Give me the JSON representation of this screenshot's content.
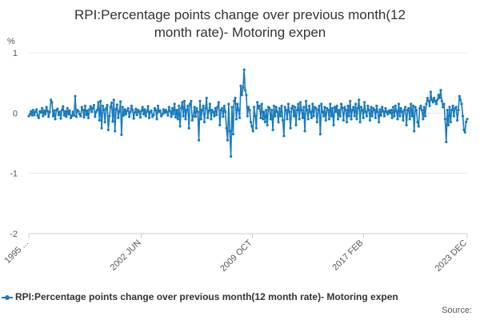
{
  "title_line1": "RPI:Percentage points change over previous month(12",
  "title_line2": "month rate)- Motoring expen",
  "legend_label": "RPI:Percentage points change over previous month(12 month rate)- Motoring expen",
  "source_label": "Source:",
  "colors": {
    "series": "#1a7bbd",
    "grid": "#e6e6e6",
    "axis": "#cccccc"
  },
  "chart_data": {
    "type": "line",
    "y_unit": "%",
    "ylim": [
      -2,
      1
    ],
    "y_ticks": [
      1,
      0,
      -1,
      -2
    ],
    "y_tick_labels": [
      "1",
      "0",
      "-1",
      "-2"
    ],
    "x_tick_labels": [
      "1995 ...",
      "2002 JUN",
      "2009 OCT",
      "2017 FEB",
      "2023 DEC"
    ],
    "x_tick_positions": [
      1995.0,
      2002.42,
      2009.75,
      2017.08,
      2023.92
    ],
    "x_start": 1995.0,
    "x_end": 2023.92,
    "grid": "horizontal",
    "legend": "bottom",
    "series": [
      {
        "name": "RPI:Percentage points change over previous month(12 month rate)- Motoring expen",
        "values": [
          -0.05,
          -0.02,
          0.03,
          -0.04,
          0.05,
          -0.03,
          0.02,
          0.06,
          -0.04,
          -0.08,
          0.03,
          0.01,
          0.08,
          -0.05,
          0.04,
          -0.02,
          0.1,
          0.03,
          -0.06,
          0.02,
          0.22,
          0.18,
          -0.05,
          0.04,
          -0.1,
          0.05,
          0.07,
          -0.03,
          0.02,
          -0.09,
          0.05,
          0.11,
          -0.04,
          0.03,
          -0.06,
          0.08,
          -0.02,
          0.04,
          -0.08,
          -0.05,
          0.02,
          -0.04,
          0.28,
          -0.06,
          0.05,
          0.03,
          -0.02,
          -0.05,
          0.1,
          0.05,
          -0.07,
          0.12,
          -0.03,
          0.04,
          -0.08,
          0.06,
          0.11,
          0.02,
          0.08,
          0.13,
          -0.06,
          0.02,
          0.05,
          0.18,
          -0.12,
          0.2,
          -0.25,
          0.12,
          0.05,
          -0.15,
          0.08,
          0.13,
          -0.28,
          -0.05,
          0.1,
          0.17,
          -0.14,
          0.22,
          -0.3,
          0.06,
          0.14,
          -0.08,
          0.03,
          0.19,
          -0.36,
          0.1,
          -0.04,
          0.06,
          -0.02,
          0.04,
          0.08,
          -0.06,
          0.02,
          0.12,
          0.05,
          -0.09,
          0.01,
          0.07,
          -0.03,
          0.05,
          0.02,
          -0.07,
          0.04,
          0.1,
          -0.02,
          0.06,
          -0.05,
          0.03,
          0.11,
          -0.08,
          0.02,
          0.04,
          -0.06,
          -0.03,
          0.08,
          0.05,
          -0.1,
          0.12,
          0.02,
          0.04,
          -0.05,
          -0.02,
          0.06,
          0.0,
          0.05,
          0.02,
          -0.04,
          0.1,
          0.03,
          -0.06,
          0.08,
          -0.02,
          0.15,
          -0.07,
          0.05,
          -0.1,
          0.12,
          -0.22,
          0.08,
          0.18,
          -0.05,
          0.2,
          -0.1,
          0.05,
          0.12,
          -0.25,
          0.15,
          0.2,
          -0.12,
          -0.05,
          0.1,
          -0.06,
          0.08,
          0.02,
          -0.45,
          0.2,
          -0.1,
          0.05,
          0.12,
          -0.15,
          0.08,
          0.25,
          -0.08,
          0.04,
          0.15,
          -0.1,
          0.05,
          0.02,
          -0.05,
          0.08,
          -0.03,
          0.1,
          0.18,
          -0.2,
          0.05,
          0.08,
          -0.06,
          0.12,
          0.02,
          -0.25,
          -0.45,
          0.15,
          -0.3,
          -0.72,
          0.1,
          -0.35,
          0.2,
          0.25,
          -0.1,
          0.15,
          0.05,
          -0.08,
          0.45,
          0.3,
          0.42,
          0.72,
          0.38,
          0.3,
          -0.05,
          0.1,
          0.05,
          -0.15,
          -0.22,
          -0.3,
          0.1,
          -0.05,
          -0.25,
          0.18,
          0.08,
          0.12,
          -0.08,
          0.15,
          -0.1,
          0.02,
          -0.15,
          0.05,
          -0.2,
          0.1,
          0.08,
          -0.1,
          0.05,
          -0.28,
          0.12,
          -0.05,
          0.1,
          0.02,
          -0.15,
          0.08,
          -0.05,
          0.12,
          -0.12,
          -0.38,
          0.1,
          0.05,
          -0.1,
          0.15,
          0.02,
          -0.25,
          0.08,
          0.12,
          -0.05,
          0.1,
          -0.2,
          0.05,
          0.15,
          -0.1,
          0.18,
          0.05,
          -0.08,
          0.1,
          -0.3,
          0.2,
          0.05,
          -0.1,
          0.12,
          0.02,
          -0.08,
          0.15,
          -0.05,
          0.1,
          0.08,
          -0.15,
          0.05,
          0.12,
          -0.35,
          0.15,
          0.02,
          -0.05,
          0.1,
          -0.12,
          0.08,
          0.05,
          -0.1,
          0.15,
          -0.05,
          0.08,
          -0.2,
          0.1,
          0.02,
          0.12,
          -0.1,
          0.05,
          -0.05,
          0.15,
          0.08,
          -0.12,
          0.1,
          0.05,
          -0.15,
          0.12,
          -0.05,
          0.2,
          -0.1,
          0.05,
          0.1,
          -0.05,
          0.15,
          -0.1,
          0.08,
          0.22,
          -0.15,
          0.1,
          0.05,
          -0.08,
          0.18,
          0.02,
          -0.05,
          0.12,
          0.05,
          -0.12,
          0.1,
          -0.05,
          0.08,
          0.05,
          -0.08,
          0.12,
          0.02,
          -0.15,
          0.06,
          -0.04,
          0.1,
          0.03,
          -0.05,
          0.08,
          0.02,
          -0.02,
          0.04,
          0.0,
          0.05,
          -0.08,
          0.1,
          -0.05,
          0.12,
          0.03,
          -0.1,
          0.15,
          -0.05,
          0.08,
          0.02,
          -0.12,
          0.05,
          0.1,
          -0.2,
          0.05,
          0.08,
          -0.1,
          0.15,
          -0.05,
          0.12,
          -0.3,
          0.1,
          0.05,
          -0.15,
          -0.22,
          0.08,
          0.12,
          0.05,
          -0.1,
          0.1,
          -0.05,
          0.15,
          0.25,
          0.2,
          0.12,
          0.35,
          0.22,
          0.18,
          0.25,
          0.2,
          0.15,
          0.22,
          0.3,
          0.25,
          0.38,
          0.2,
          0.1,
          0.15,
          -0.1,
          -0.48,
          0.05,
          -0.2,
          0.1,
          -0.15,
          0.05,
          0.12,
          -0.05,
          0.08,
          0.1,
          -0.12,
          0.05,
          0.28,
          0.22,
          0.15,
          -0.05,
          -0.28,
          -0.32,
          -0.15,
          -0.1
        ]
      }
    ]
  }
}
